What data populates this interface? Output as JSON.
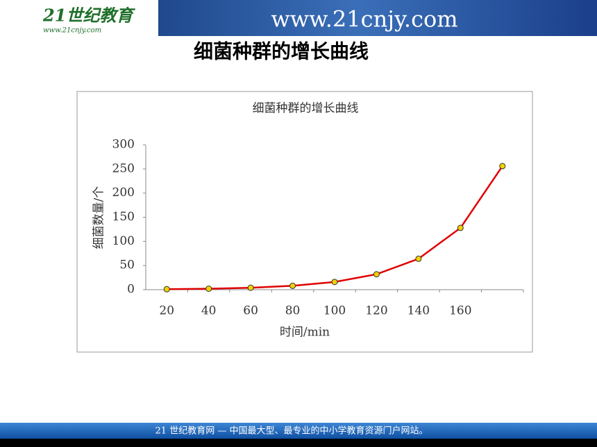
{
  "header": {
    "logo": "21世纪教育",
    "logo_url": "www.21cnjy.com",
    "url": "www.21cnjy.com"
  },
  "slide_title": "细菌种群的增长曲线",
  "chart_data": {
    "type": "line",
    "title": "细菌种群的增长曲线",
    "x_label": "时间/min",
    "y_label": "细菌数量/个",
    "categories": [
      "20",
      "40",
      "60",
      "80",
      "100",
      "120",
      "140",
      "160",
      null
    ],
    "series": [
      {
        "name": "细菌数量",
        "color": "#e00000",
        "marker_color": "#f5d000",
        "values": [
          1,
          2,
          4,
          8,
          16,
          32,
          64,
          128,
          256
        ]
      }
    ],
    "ylim": [
      0,
      300
    ],
    "yticks": [
      0,
      50,
      100,
      150,
      200,
      250,
      300
    ],
    "grid": false,
    "legend": false
  },
  "footer": "21 世纪教育网 — 中国最大型、最专业的中小学教育资源门户网站。"
}
